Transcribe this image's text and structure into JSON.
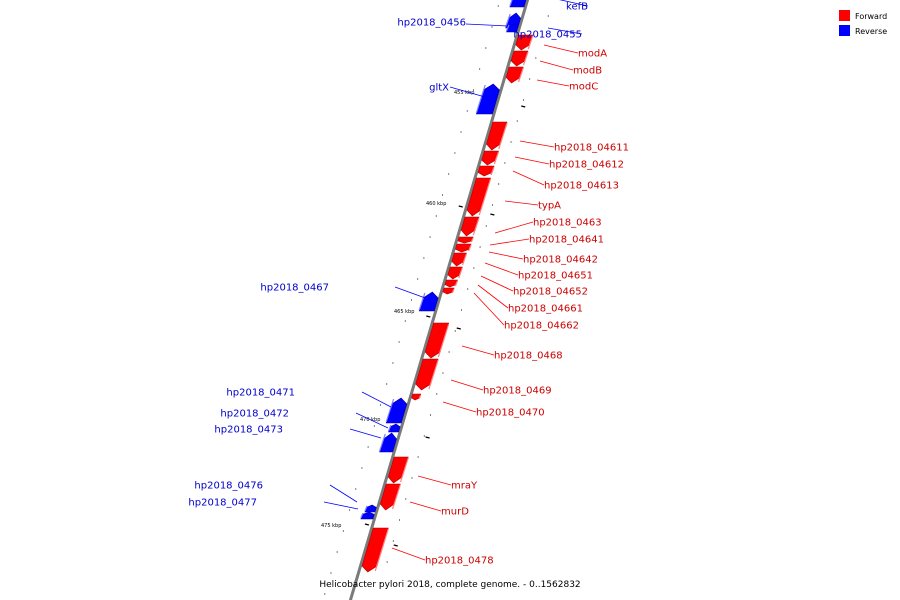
{
  "caption": "Helicobacter pylori 2018, complete genome. - 0..1562832",
  "legend": [
    {
      "label": "Forward",
      "color": "#ff0000"
    },
    {
      "label": "Reverse",
      "color": "#0000ff"
    }
  ],
  "colors": {
    "forward": "#ff0000",
    "reverse": "#0000ff",
    "backbone": "#808080",
    "forward_label": "#cc0000",
    "reverse_label": "#0000cc"
  },
  "ticks": [
    {
      "label": "455 kbp"
    },
    {
      "label": "460 kbp"
    },
    {
      "label": "465 kbp"
    },
    {
      "label": "470 kbp"
    },
    {
      "label": "475 kbp"
    }
  ],
  "genes": [
    {
      "name": "kefB",
      "strand": "reverse"
    },
    {
      "name": "hp2018_0456",
      "strand": "reverse"
    },
    {
      "name": "hp2018_0455",
      "strand": "reverse"
    },
    {
      "name": "modA",
      "strand": "forward"
    },
    {
      "name": "modB",
      "strand": "forward"
    },
    {
      "name": "modC",
      "strand": "forward"
    },
    {
      "name": "gltX",
      "strand": "reverse"
    },
    {
      "name": "hp2018_04611",
      "strand": "forward"
    },
    {
      "name": "hp2018_04612",
      "strand": "forward"
    },
    {
      "name": "hp2018_04613",
      "strand": "forward"
    },
    {
      "name": "typA",
      "strand": "forward"
    },
    {
      "name": "hp2018_0463",
      "strand": "forward"
    },
    {
      "name": "hp2018_04641",
      "strand": "forward"
    },
    {
      "name": "hp2018_04642",
      "strand": "forward"
    },
    {
      "name": "hp2018_04651",
      "strand": "forward"
    },
    {
      "name": "hp2018_04652",
      "strand": "forward"
    },
    {
      "name": "hp2018_04661",
      "strand": "forward"
    },
    {
      "name": "hp2018_04662",
      "strand": "forward"
    },
    {
      "name": "hp2018_0467",
      "strand": "reverse"
    },
    {
      "name": "hp2018_0468",
      "strand": "forward"
    },
    {
      "name": "hp2018_0469",
      "strand": "forward"
    },
    {
      "name": "hp2018_0470",
      "strand": "forward"
    },
    {
      "name": "hp2018_0471",
      "strand": "reverse"
    },
    {
      "name": "hp2018_0472",
      "strand": "reverse"
    },
    {
      "name": "hp2018_0473",
      "strand": "reverse"
    },
    {
      "name": "mraY",
      "strand": "forward"
    },
    {
      "name": "murD",
      "strand": "forward"
    },
    {
      "name": "hp2018_0476",
      "strand": "reverse"
    },
    {
      "name": "hp2018_0477",
      "strand": "reverse"
    },
    {
      "name": "hp2018_0478",
      "strand": "forward"
    }
  ]
}
